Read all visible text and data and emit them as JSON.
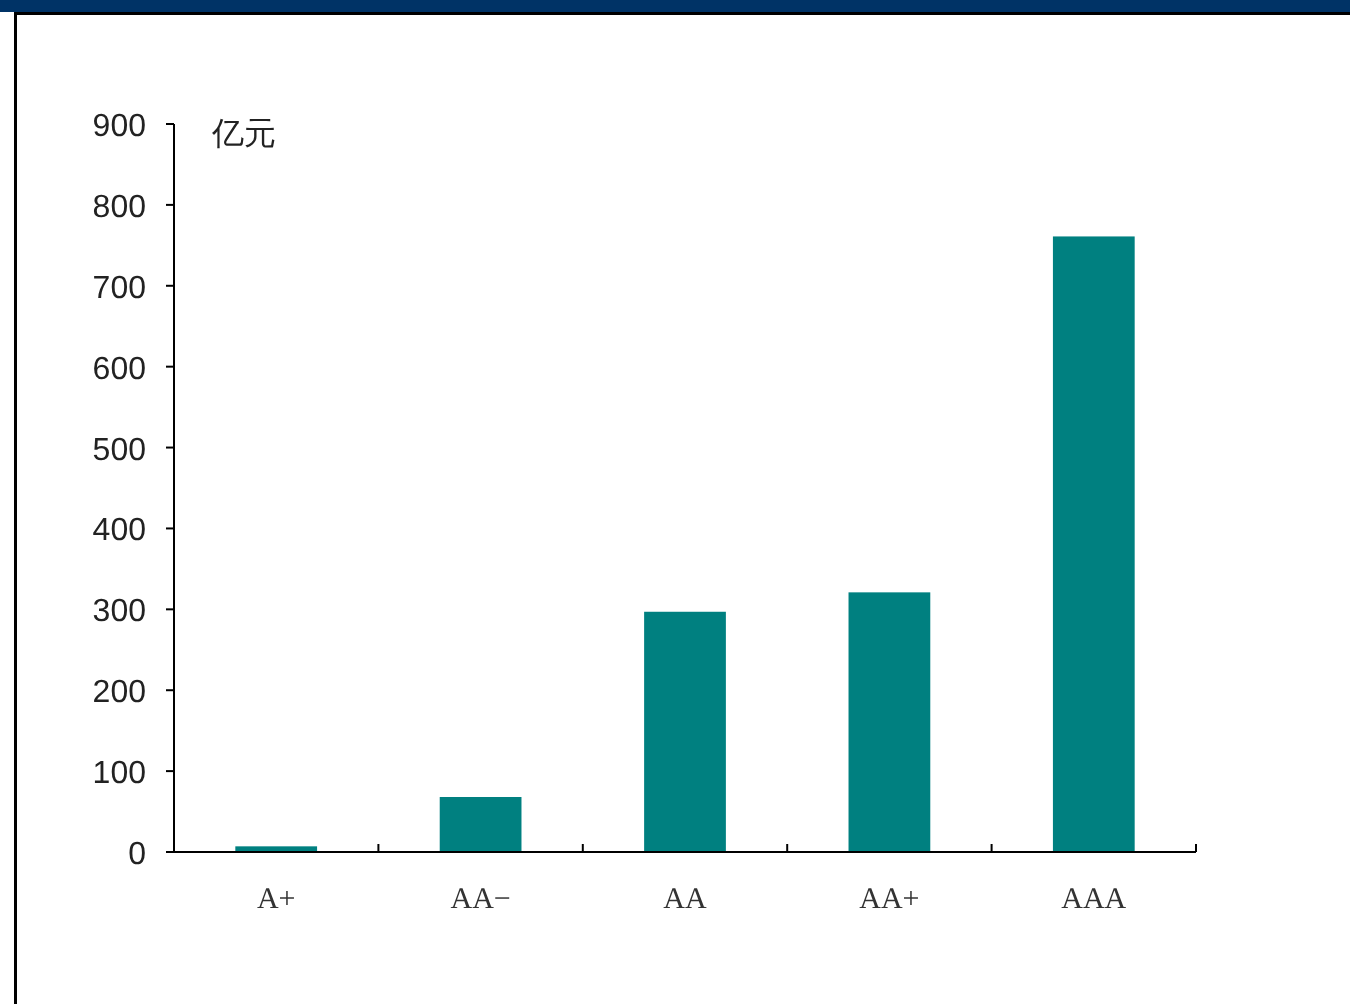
{
  "chart_data": {
    "type": "bar",
    "ylabel": "亿元",
    "categories": [
      "A+",
      "AA−",
      "AA",
      "AA+",
      "AAA"
    ],
    "values": [
      7,
      68,
      297,
      321,
      761
    ],
    "color": "#008080",
    "ylim": [
      0,
      900
    ],
    "yticks": [
      0,
      100,
      200,
      300,
      400,
      500,
      600,
      700,
      800,
      900
    ],
    "grid": false,
    "legend": false
  }
}
